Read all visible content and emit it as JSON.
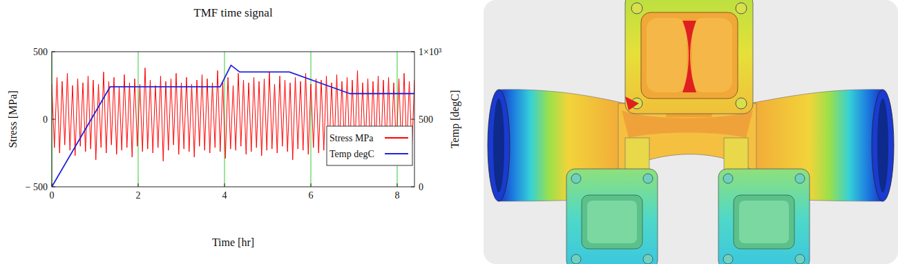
{
  "chart_data": {
    "type": "line",
    "title": "TMF time signal",
    "x_label": "Time [hr]",
    "y_label": "Stress [MPa]",
    "y2_label": "Temp [degC]",
    "xlim": [
      0,
      8.4
    ],
    "xticks": [
      0,
      2,
      4,
      6,
      8
    ],
    "ylim": [
      -500,
      500
    ],
    "yticks": [
      {
        "value": -500,
        "label": "− 500"
      },
      0,
      500
    ],
    "y2lim": [
      0,
      1000
    ],
    "y2ticks": [
      0,
      500,
      {
        "value": 1000,
        "label": "1×10³"
      }
    ],
    "grid": true,
    "legend": "lower right",
    "series": [
      {
        "name": "Stress MPa",
        "color": "#ff0000",
        "x": [
          0,
          0.06,
          0.12,
          0.18,
          0.24,
          0.3,
          0.36,
          0.42,
          0.48,
          0.54,
          0.6,
          0.66,
          0.72,
          0.78,
          0.84,
          0.9,
          0.96,
          1.02,
          1.08,
          1.14,
          1.2,
          1.26,
          1.32,
          1.38,
          1.44,
          1.5,
          1.56,
          1.62,
          1.68,
          1.74,
          1.8,
          1.86,
          1.92,
          1.98,
          2.04,
          2.1,
          2.16,
          2.22,
          2.28,
          2.34,
          2.4,
          2.46,
          2.52,
          2.58,
          2.64,
          2.7,
          2.76,
          2.82,
          2.88,
          2.94,
          3,
          3.06,
          3.12,
          3.18,
          3.24,
          3.3,
          3.36,
          3.42,
          3.48,
          3.54,
          3.6,
          3.66,
          3.72,
          3.78,
          3.84,
          3.9,
          3.96,
          4.02,
          4.08,
          4.14,
          4.2,
          4.26,
          4.32,
          4.38,
          4.44,
          4.5,
          4.56,
          4.62,
          4.68,
          4.74,
          4.8,
          4.86,
          4.92,
          4.98,
          5.04,
          5.1,
          5.16,
          5.22,
          5.28,
          5.34,
          5.4,
          5.46,
          5.52,
          5.58,
          5.64,
          5.7,
          5.76,
          5.82,
          5.88,
          5.94,
          6,
          6.06,
          6.12,
          6.18,
          6.24,
          6.3,
          6.36,
          6.42,
          6.48,
          6.54,
          6.6,
          6.66,
          6.72,
          6.78,
          6.84,
          6.9,
          6.96,
          7.02,
          7.08,
          7.14,
          7.2,
          7.26,
          7.32,
          7.38,
          7.44,
          7.5,
          7.56,
          7.62,
          7.68,
          7.74,
          7.8,
          7.86,
          7.92,
          7.98,
          8.04,
          8.1,
          8.16,
          8.22,
          8.28,
          8.34,
          8.4
        ],
        "values": [
          260,
          -210,
          310,
          -250,
          280,
          -190,
          340,
          -230,
          250,
          -270,
          300,
          -200,
          270,
          -240,
          320,
          -220,
          290,
          -300,
          260,
          -210,
          350,
          -250,
          280,
          -190,
          310,
          -260,
          240,
          -230,
          330,
          -210,
          270,
          -280,
          300,
          -200,
          260,
          -240,
          380,
          -220,
          290,
          -250,
          250,
          -210,
          320,
          -310,
          280,
          -230,
          300,
          -190,
          340,
          -260,
          270,
          -220,
          310,
          -240,
          260,
          -280,
          290,
          -200,
          330,
          -230,
          300,
          -250,
          270,
          -210,
          360,
          -240,
          280,
          -290,
          310,
          -220,
          250,
          -230,
          340,
          -200,
          290,
          -260,
          270,
          -240,
          310,
          -210,
          280,
          -270,
          300,
          -230,
          350,
          -220,
          260,
          -250,
          320,
          -200,
          290,
          -240,
          270,
          -300,
          310,
          -220,
          280,
          -230,
          340,
          -260,
          260,
          -210,
          300,
          -250,
          290,
          -230,
          320,
          -280,
          270,
          -220,
          330,
          -240,
          280,
          -200,
          310,
          -260,
          290,
          -230,
          360,
          -250,
          270,
          -220,
          300,
          -240,
          280,
          -210,
          320,
          -270,
          290,
          -230,
          310,
          -250,
          270,
          -220,
          300,
          -240,
          340,
          -210,
          280,
          -230,
          290
        ]
      },
      {
        "name": "Temp degC",
        "color": "#2222dd",
        "axis": "y2",
        "x": [
          0,
          1.35,
          3.9,
          4.15,
          4.35,
          5.5,
          6.9,
          8.4
        ],
        "values": [
          0,
          740,
          740,
          900,
          850,
          850,
          690,
          690
        ]
      }
    ]
  }
}
